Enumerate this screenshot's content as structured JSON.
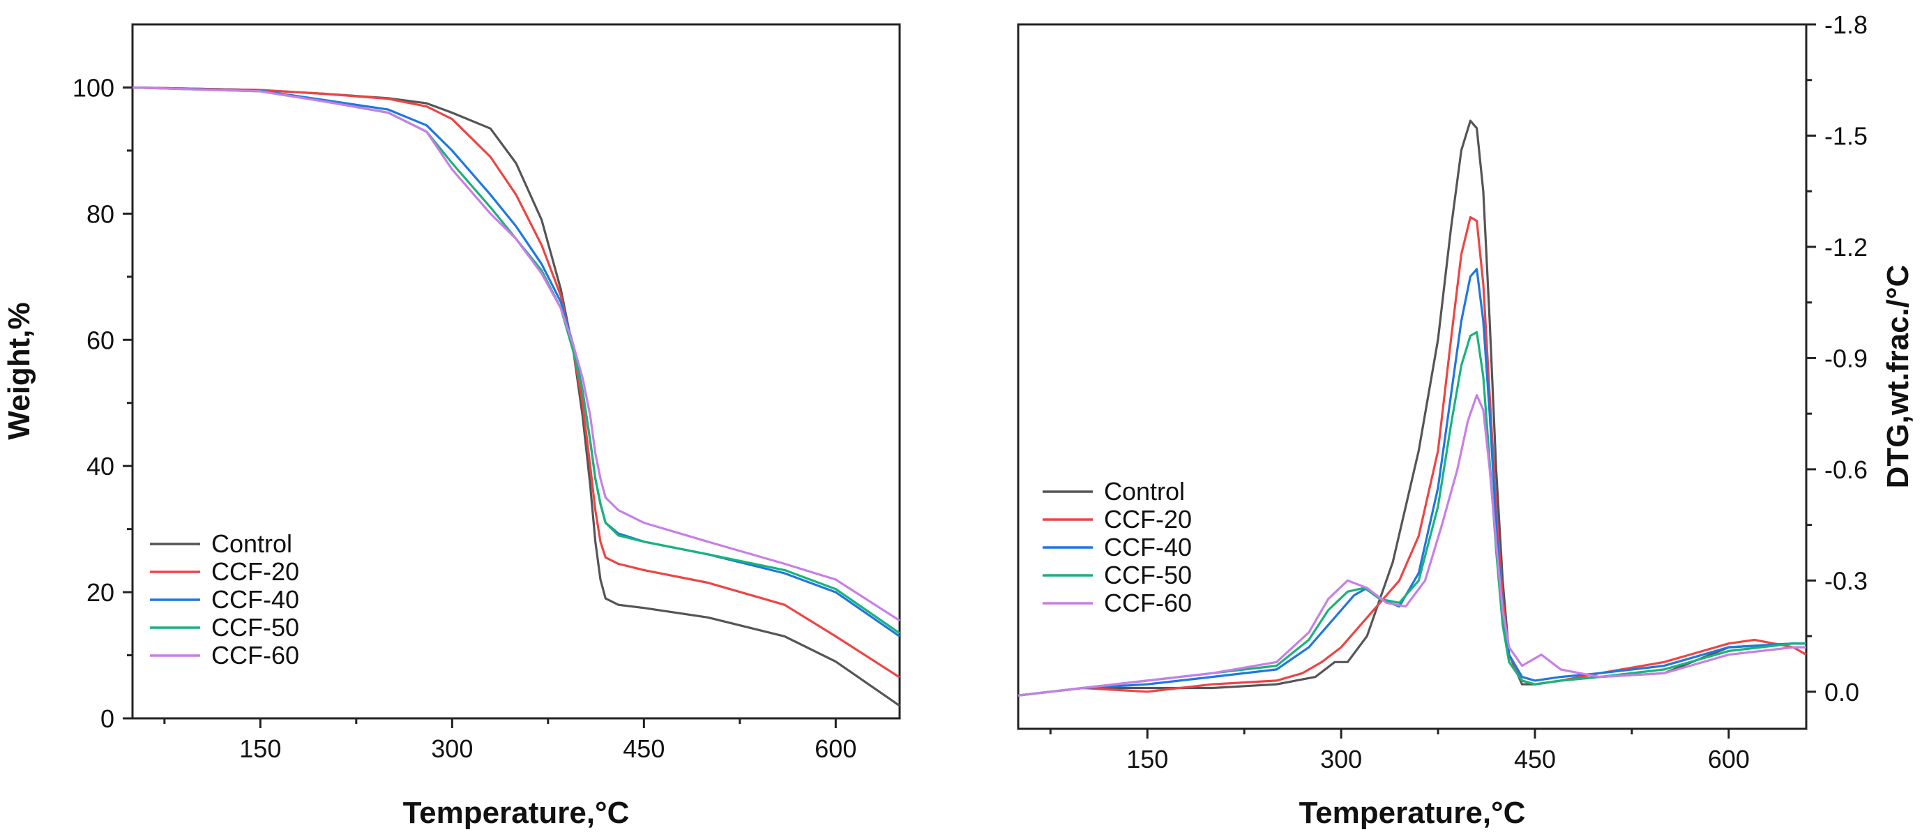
{
  "chart_data": [
    {
      "type": "line",
      "xlabel": "Temperature,°C",
      "ylabel": "Weight,%",
      "xlim": [
        50,
        650
      ],
      "ylim": [
        0,
        110
      ],
      "xticks": [
        150,
        300,
        450,
        600
      ],
      "yticks": [
        0,
        20,
        40,
        60,
        80,
        100
      ],
      "xtick_labels": [
        "150",
        "300",
        "450",
        "600"
      ],
      "ytick_labels": [
        "0",
        "20",
        "40",
        "60",
        "80",
        "100"
      ],
      "legend_position": "bottom-left",
      "series": [
        {
          "name": "Control",
          "color": "#555555",
          "x": [
            50,
            150,
            200,
            250,
            280,
            300,
            330,
            350,
            370,
            385,
            395,
            402,
            408,
            412,
            416,
            420,
            430,
            450,
            500,
            560,
            600,
            650
          ],
          "y": [
            100,
            99.6,
            99,
            98.3,
            97.5,
            96,
            93.5,
            88,
            79,
            68,
            58,
            48,
            37,
            28,
            22,
            19,
            18,
            17.5,
            16,
            13,
            9,
            2
          ]
        },
        {
          "name": "CCF-20",
          "color": "#ee4444",
          "x": [
            50,
            150,
            200,
            250,
            280,
            300,
            330,
            350,
            370,
            385,
            395,
            402,
            408,
            412,
            416,
            420,
            430,
            450,
            500,
            560,
            600,
            650
          ],
          "y": [
            100,
            99.6,
            99,
            98.2,
            97,
            95,
            89,
            83,
            75,
            67,
            58,
            50,
            40,
            33,
            28,
            25.5,
            24.5,
            23.5,
            21.5,
            18,
            13,
            6.5
          ]
        },
        {
          "name": "CCF-40",
          "color": "#1f77e0",
          "x": [
            50,
            150,
            200,
            250,
            280,
            300,
            330,
            350,
            370,
            385,
            395,
            402,
            408,
            412,
            416,
            420,
            430,
            450,
            500,
            560,
            600,
            650
          ],
          "y": [
            100,
            99.5,
            98,
            96.5,
            94,
            90,
            83,
            78,
            72,
            66,
            59,
            52,
            44,
            38,
            34,
            31,
            29.3,
            28,
            26,
            23,
            20,
            13
          ]
        },
        {
          "name": "CCF-50",
          "color": "#19b37a",
          "x": [
            50,
            150,
            200,
            250,
            280,
            300,
            330,
            350,
            370,
            385,
            395,
            402,
            408,
            412,
            416,
            420,
            430,
            450,
            500,
            560,
            600,
            650
          ],
          "y": [
            100,
            99.4,
            97.8,
            96,
            93,
            88,
            81,
            76,
            71,
            65,
            58,
            52,
            44,
            38,
            34,
            31,
            29,
            28,
            26,
            23.5,
            20.5,
            13.5
          ]
        },
        {
          "name": "CCF-60",
          "color": "#c77fe6",
          "x": [
            50,
            150,
            200,
            250,
            280,
            300,
            330,
            350,
            370,
            385,
            395,
            402,
            408,
            412,
            416,
            420,
            430,
            450,
            500,
            560,
            600,
            650
          ],
          "y": [
            100,
            99.4,
            97.8,
            96,
            93,
            87,
            80,
            76,
            70.5,
            65,
            59,
            54,
            48,
            42,
            38,
            35,
            33,
            31,
            28,
            24.5,
            22,
            15.5
          ]
        }
      ]
    },
    {
      "type": "line",
      "xlabel": "Temperature,°C",
      "ylabel": "DTG,wt.frac./°C",
      "xlim": [
        50,
        660
      ],
      "ylim": [
        0.1,
        -1.8
      ],
      "xticks": [
        150,
        300,
        450,
        600
      ],
      "yticks": [
        0.0,
        -0.3,
        -0.6,
        -0.9,
        -1.2,
        -1.5,
        -1.8
      ],
      "xtick_labels": [
        "150",
        "300",
        "450",
        "600"
      ],
      "ytick_labels": [
        "0.0",
        "-0.3",
        "-0.6",
        "-0.9",
        "-1.2",
        "-1.5",
        "-1.8"
      ],
      "y_axis_side": "right",
      "legend_position": "center-left",
      "series": [
        {
          "name": "Control",
          "color": "#555555",
          "x": [
            50,
            100,
            150,
            200,
            250,
            280,
            295,
            305,
            320,
            340,
            360,
            375,
            385,
            393,
            400,
            405,
            410,
            415,
            420,
            425,
            430,
            440,
            450,
            470,
            500,
            550,
            600,
            650,
            660
          ],
          "y": [
            0.01,
            -0.01,
            -0.01,
            -0.01,
            -0.02,
            -0.04,
            -0.08,
            -0.08,
            -0.15,
            -0.35,
            -0.65,
            -0.95,
            -1.25,
            -1.46,
            -1.54,
            -1.52,
            -1.35,
            -1.0,
            -0.6,
            -0.3,
            -0.1,
            -0.02,
            -0.02,
            -0.03,
            -0.04,
            -0.05,
            -0.12,
            -0.13,
            -0.13
          ]
        },
        {
          "name": "CCF-20",
          "color": "#ee4444",
          "x": [
            50,
            100,
            150,
            200,
            250,
            270,
            285,
            300,
            315,
            330,
            345,
            360,
            375,
            385,
            393,
            400,
            405,
            410,
            415,
            420,
            425,
            430,
            440,
            450,
            470,
            500,
            550,
            600,
            620,
            650,
            660
          ],
          "y": [
            0.01,
            -0.01,
            0.0,
            -0.02,
            -0.03,
            -0.05,
            -0.08,
            -0.12,
            -0.18,
            -0.24,
            -0.3,
            -0.42,
            -0.65,
            -0.95,
            -1.18,
            -1.28,
            -1.27,
            -1.1,
            -0.8,
            -0.5,
            -0.25,
            -0.1,
            -0.03,
            -0.02,
            -0.03,
            -0.05,
            -0.08,
            -0.13,
            -0.14,
            -0.12,
            -0.1
          ]
        },
        {
          "name": "CCF-40",
          "color": "#1f77e0",
          "x": [
            50,
            100,
            150,
            200,
            250,
            275,
            295,
            310,
            320,
            330,
            345,
            360,
            375,
            385,
            393,
            400,
            405,
            410,
            415,
            420,
            425,
            430,
            440,
            450,
            470,
            500,
            550,
            600,
            650,
            660
          ],
          "y": [
            0.01,
            -0.01,
            -0.02,
            -0.04,
            -0.06,
            -0.12,
            -0.2,
            -0.26,
            -0.28,
            -0.25,
            -0.23,
            -0.32,
            -0.55,
            -0.8,
            -1.0,
            -1.12,
            -1.14,
            -1.0,
            -0.75,
            -0.45,
            -0.22,
            -0.1,
            -0.04,
            -0.03,
            -0.04,
            -0.05,
            -0.07,
            -0.12,
            -0.13,
            -0.13
          ]
        },
        {
          "name": "CCF-50",
          "color": "#19b37a",
          "x": [
            50,
            100,
            150,
            200,
            250,
            275,
            290,
            305,
            318,
            330,
            345,
            360,
            375,
            385,
            393,
            400,
            405,
            410,
            415,
            420,
            425,
            430,
            440,
            450,
            470,
            500,
            550,
            600,
            650,
            660
          ],
          "y": [
            0.01,
            -0.01,
            -0.03,
            -0.05,
            -0.07,
            -0.14,
            -0.22,
            -0.27,
            -0.28,
            -0.25,
            -0.24,
            -0.3,
            -0.5,
            -0.72,
            -0.88,
            -0.96,
            -0.97,
            -0.85,
            -0.62,
            -0.38,
            -0.18,
            -0.08,
            -0.03,
            -0.02,
            -0.03,
            -0.04,
            -0.06,
            -0.11,
            -0.13,
            -0.13
          ]
        },
        {
          "name": "CCF-60",
          "color": "#c77fe6",
          "x": [
            50,
            100,
            150,
            200,
            250,
            275,
            290,
            305,
            320,
            335,
            350,
            365,
            378,
            390,
            398,
            405,
            410,
            415,
            420,
            425,
            430,
            440,
            455,
            470,
            500,
            550,
            600,
            650,
            660
          ],
          "y": [
            0.01,
            -0.01,
            -0.03,
            -0.05,
            -0.08,
            -0.16,
            -0.25,
            -0.3,
            -0.28,
            -0.24,
            -0.23,
            -0.3,
            -0.45,
            -0.6,
            -0.73,
            -0.8,
            -0.76,
            -0.6,
            -0.4,
            -0.22,
            -0.12,
            -0.07,
            -0.1,
            -0.06,
            -0.04,
            -0.05,
            -0.1,
            -0.12,
            -0.12
          ]
        }
      ]
    }
  ]
}
